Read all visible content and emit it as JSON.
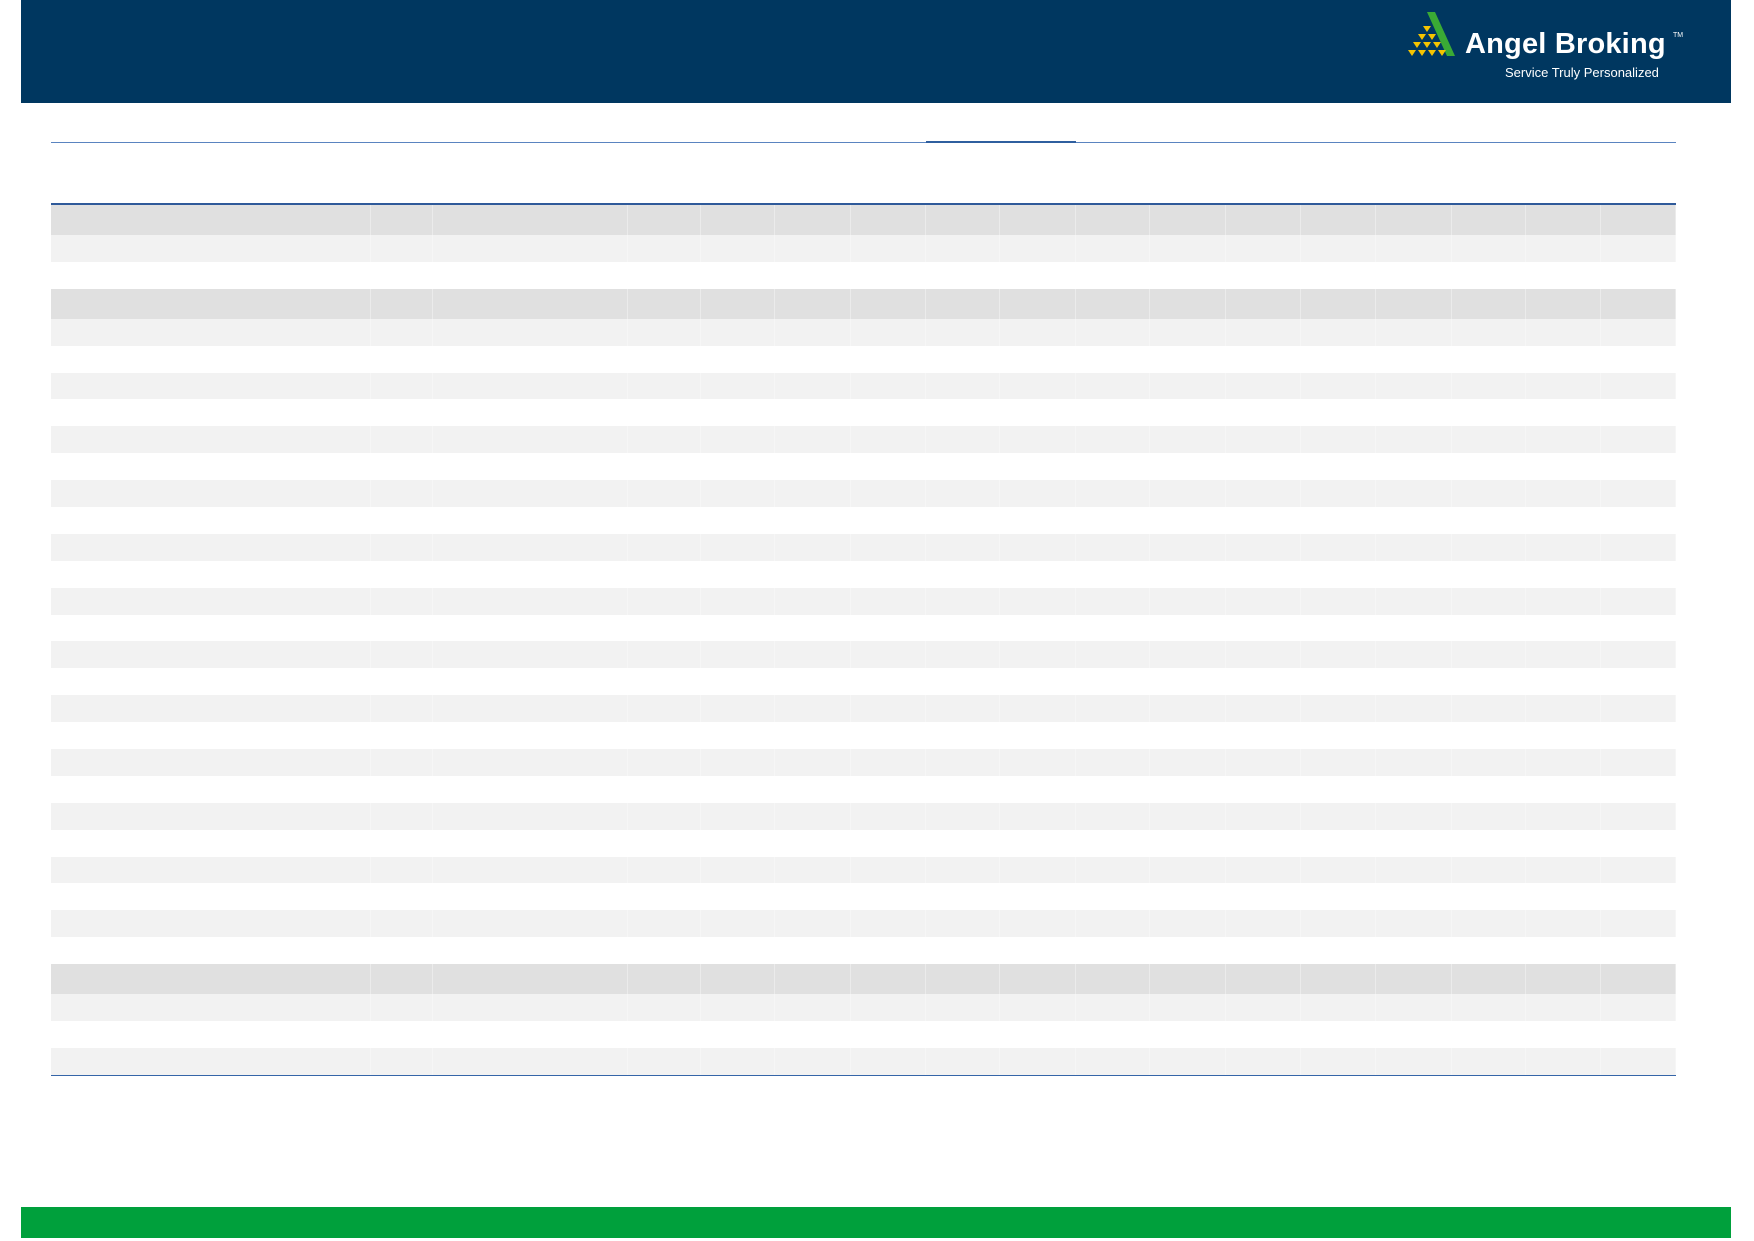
{
  "brand": {
    "name": "Angel Broking",
    "trademark": "TM",
    "tagline": "Service Truly Personalized",
    "header_color": "#003760",
    "footer_color": "#00a03c",
    "logo_mark_colors": [
      "#f5c400",
      "#3aaa35"
    ]
  },
  "table": {
    "row_styles": [
      "dark",
      "light",
      "white",
      "dark",
      "light",
      "white",
      "light",
      "white",
      "light",
      "white",
      "light",
      "white",
      "light",
      "white",
      "light",
      "white",
      "light",
      "white",
      "light",
      "white",
      "light",
      "white",
      "light",
      "white",
      "light",
      "white",
      "light",
      "white",
      "dark",
      "light",
      "white",
      "light"
    ],
    "column_count": 17
  }
}
